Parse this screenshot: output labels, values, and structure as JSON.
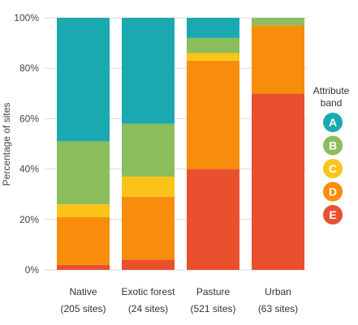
{
  "chart_data": {
    "type": "bar",
    "stacked": true,
    "ylabel": "Percentage of sites",
    "ylim": [
      0,
      100
    ],
    "yticks": [
      "0%",
      "20%",
      "40%",
      "60%",
      "80%",
      "100%"
    ],
    "grid": true,
    "categories": [
      "Native",
      "Exotic forest",
      "Pasture",
      "Urban"
    ],
    "category_counts": [
      "(205 sites)",
      "(24 sites)",
      "(521 sites)",
      "(63 sites)"
    ],
    "legend": {
      "title_lines": [
        "Attribute",
        "band"
      ],
      "placement": "right"
    },
    "series": [
      {
        "name": "E",
        "color": "#e8502e",
        "values": [
          2,
          4,
          40,
          70
        ]
      },
      {
        "name": "D",
        "color": "#f78d0a",
        "values": [
          19,
          25,
          43,
          27
        ]
      },
      {
        "name": "C",
        "color": "#fcc419",
        "values": [
          5,
          8,
          3,
          0
        ]
      },
      {
        "name": "B",
        "color": "#8bbd5d",
        "values": [
          25,
          21,
          6,
          3
        ]
      },
      {
        "name": "A",
        "color": "#1ba9b1",
        "values": [
          49,
          42,
          8,
          0
        ]
      }
    ]
  }
}
